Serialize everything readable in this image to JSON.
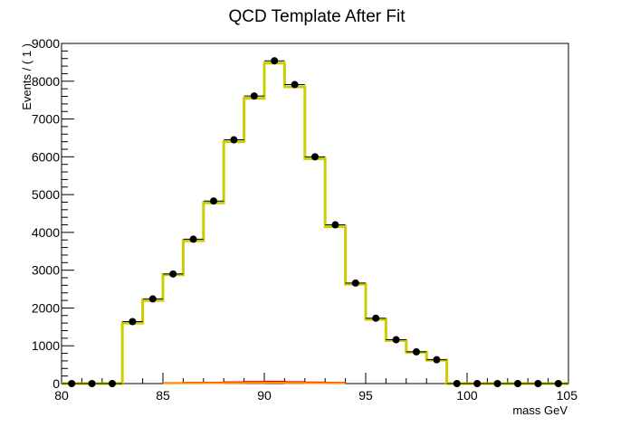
{
  "chart_data": {
    "type": "line",
    "title": "QCD Template After Fit",
    "xlabel": "mass GeV",
    "ylabel": "Events / ( 1 )",
    "xlim": [
      80,
      105
    ],
    "ylim": [
      0,
      9000
    ],
    "x_ticks": [
      80,
      85,
      90,
      95,
      100,
      105
    ],
    "y_ticks": [
      0,
      1000,
      2000,
      3000,
      4000,
      5000,
      6000,
      7000,
      8000,
      9000
    ],
    "x_tick_labels": [
      "80",
      "85",
      "90",
      "95",
      "100",
      "105"
    ],
    "y_tick_labels": [
      "0",
      "1000",
      "2000",
      "3000",
      "4000",
      "5000",
      "6000",
      "7000",
      "8000",
      "9000"
    ],
    "bin_width": 1,
    "grid": false,
    "series": [
      {
        "kind": "data-points",
        "color": "#000000",
        "x": [
          80.5,
          81.5,
          82.5,
          83.5,
          84.5,
          85.5,
          86.5,
          87.5,
          88.5,
          89.5,
          90.5,
          91.5,
          92.5,
          93.5,
          94.5,
          95.5,
          96.5,
          97.5,
          98.5,
          99.5,
          100.5,
          101.5,
          102.5,
          103.5,
          104.5
        ],
        "y": [
          0,
          0,
          0,
          1640,
          2240,
          2900,
          3820,
          4830,
          6450,
          7610,
          8540,
          7910,
          6000,
          4200,
          2660,
          1730,
          1160,
          840,
          630,
          0,
          0,
          0,
          0,
          0,
          0
        ]
      },
      {
        "kind": "fit-histogram",
        "color": "#cccc00",
        "x": [
          80.5,
          81.5,
          82.5,
          83.5,
          84.5,
          85.5,
          86.5,
          87.5,
          88.5,
          89.5,
          90.5,
          91.5,
          92.5,
          93.5,
          94.5,
          95.5,
          96.5,
          97.5,
          98.5,
          99.5,
          100.5,
          101.5,
          102.5,
          103.5,
          104.5
        ],
        "y": [
          0,
          0,
          0,
          1600,
          2200,
          2880,
          3780,
          4780,
          6400,
          7550,
          8480,
          7850,
          5950,
          4150,
          2630,
          1700,
          1140,
          830,
          620,
          0,
          0,
          0,
          0,
          0,
          0
        ]
      },
      {
        "kind": "component",
        "color": "#ff0000",
        "x": [
          85.5,
          86.5,
          87.5,
          88.5,
          89.5,
          90.5,
          91.5,
          92.5,
          93.5
        ],
        "y": [
          15,
          20,
          25,
          35,
          45,
          50,
          40,
          30,
          20
        ]
      },
      {
        "kind": "component",
        "color": "#ff9900",
        "x": [
          85.5,
          86.5,
          87.5,
          88.5,
          89.5,
          90.5,
          91.5,
          92.5,
          93.5
        ],
        "y": [
          8,
          10,
          12,
          15,
          18,
          20,
          15,
          12,
          10
        ]
      }
    ]
  }
}
